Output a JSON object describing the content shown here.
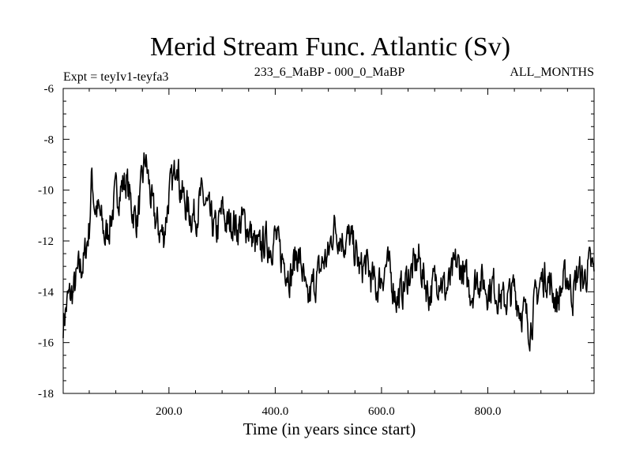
{
  "chart_data": {
    "type": "line",
    "title": "Merid Stream Func. Atlantic (Sv)",
    "subtitle_left": "Expt = teyIv1-teyfa3",
    "subtitle_center": "233_6_MaBP - 000_0_MaBP",
    "subtitle_right": "ALL_MONTHS",
    "xlabel": "Time (in years since start)",
    "ylabel": "",
    "xlim": [
      1,
      1000
    ],
    "ylim": [
      -18,
      -6
    ],
    "xticks": [
      200,
      400,
      600,
      800
    ],
    "xtick_labels": [
      "200.0",
      "400.0",
      "600.0",
      "800.0"
    ],
    "yticks": [
      -6,
      -8,
      -10,
      -12,
      -14,
      -16,
      -18
    ],
    "ytick_labels": [
      "-6",
      "-8",
      "-10",
      "-12",
      "-14",
      "-16",
      "-18"
    ],
    "grid": false,
    "series": [
      {
        "name": "Merid Stream Func. Atlantic",
        "color": "#000000",
        "x": [
          1,
          10,
          20,
          30,
          40,
          50,
          55,
          60,
          70,
          80,
          90,
          100,
          110,
          120,
          130,
          140,
          150,
          155,
          160,
          170,
          180,
          190,
          200,
          210,
          215,
          220,
          230,
          240,
          250,
          260,
          270,
          280,
          290,
          300,
          310,
          320,
          330,
          340,
          350,
          360,
          370,
          380,
          390,
          400,
          410,
          420,
          430,
          440,
          450,
          460,
          470,
          480,
          490,
          500,
          510,
          520,
          530,
          540,
          550,
          560,
          570,
          580,
          590,
          600,
          610,
          620,
          630,
          640,
          650,
          660,
          670,
          680,
          690,
          700,
          710,
          720,
          730,
          740,
          750,
          760,
          770,
          780,
          790,
          800,
          810,
          820,
          830,
          840,
          850,
          860,
          870,
          880,
          890,
          900,
          910,
          920,
          930,
          940,
          950,
          960,
          970,
          980,
          990,
          1000
        ],
        "values": [
          -15.2,
          -14.3,
          -14.0,
          -13.2,
          -12.8,
          -11.5,
          -9.4,
          -10.6,
          -11.0,
          -11.9,
          -11.2,
          -10.2,
          -9.9,
          -9.6,
          -10.7,
          -11.2,
          -9.7,
          -8.7,
          -9.4,
          -10.9,
          -11.5,
          -11.8,
          -10.2,
          -9.5,
          -8.3,
          -9.8,
          -10.5,
          -10.9,
          -11.0,
          -10.3,
          -10.6,
          -11.3,
          -11.7,
          -10.8,
          -11.4,
          -11.2,
          -11.5,
          -11.2,
          -11.5,
          -12.1,
          -12.4,
          -12.0,
          -12.2,
          -11.8,
          -12.6,
          -12.9,
          -13.4,
          -12.4,
          -13.0,
          -14.6,
          -13.8,
          -13.4,
          -12.8,
          -12.6,
          -11.4,
          -11.7,
          -12.0,
          -11.9,
          -12.4,
          -13.2,
          -12.9,
          -13.4,
          -13.9,
          -13.4,
          -12.9,
          -13.6,
          -14.3,
          -13.9,
          -13.4,
          -13.1,
          -12.7,
          -13.5,
          -14.1,
          -13.6,
          -13.3,
          -14.0,
          -13.6,
          -12.9,
          -13.1,
          -13.6,
          -14.0,
          -13.4,
          -13.6,
          -13.9,
          -13.7,
          -14.1,
          -14.4,
          -14.2,
          -13.9,
          -14.6,
          -14.9,
          -15.4,
          -14.3,
          -13.6,
          -13.3,
          -13.9,
          -14.4,
          -13.8,
          -13.4,
          -14.1,
          -13.2,
          -13.6,
          -13.0,
          -13.2
        ]
      }
    ]
  }
}
